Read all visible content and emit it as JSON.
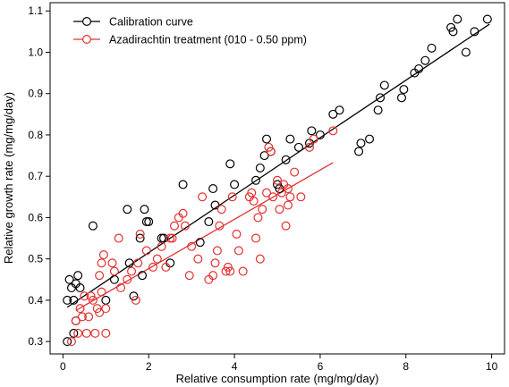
{
  "chart_data": {
    "type": "scatter",
    "title": "",
    "xlabel": "Relative consumption rate (mg/mg/day)",
    "ylabel": "Relative growth rate (mg/mg/day)",
    "xlim": [
      -0.3,
      10.3
    ],
    "ylim": [
      0.27,
      1.12
    ],
    "xticks": [
      0,
      2,
      4,
      6,
      8,
      10
    ],
    "yticks": [
      0.3,
      0.4,
      0.5,
      0.6,
      0.7,
      0.8,
      0.9,
      1.0,
      1.1
    ],
    "ytick_labels": [
      "0.3",
      "0.4",
      "0.5",
      "0.6",
      "0.7",
      "0.8",
      "0.9",
      "1.0",
      "1.1"
    ],
    "grid": false,
    "legend_position": "top-left",
    "series": [
      {
        "name": "Calibration curve",
        "color": "#000000",
        "marker": "open-circle",
        "points": [
          [
            0.1,
            0.3
          ],
          [
            0.1,
            0.4
          ],
          [
            0.15,
            0.45
          ],
          [
            0.2,
            0.43
          ],
          [
            0.25,
            0.4
          ],
          [
            0.3,
            0.44
          ],
          [
            0.35,
            0.46
          ],
          [
            0.4,
            0.43
          ],
          [
            0.25,
            0.32
          ],
          [
            0.3,
            0.35
          ],
          [
            0.7,
            0.58
          ],
          [
            1.0,
            0.4
          ],
          [
            1.2,
            0.45
          ],
          [
            1.5,
            0.62
          ],
          [
            1.55,
            0.49
          ],
          [
            1.65,
            0.41
          ],
          [
            1.8,
            0.55
          ],
          [
            1.85,
            0.46
          ],
          [
            1.9,
            0.62
          ],
          [
            1.95,
            0.59
          ],
          [
            2.0,
            0.59
          ],
          [
            2.3,
            0.55
          ],
          [
            2.35,
            0.55
          ],
          [
            2.5,
            0.49
          ],
          [
            2.8,
            0.68
          ],
          [
            3.2,
            0.54
          ],
          [
            3.4,
            0.59
          ],
          [
            3.5,
            0.67
          ],
          [
            3.55,
            0.63
          ],
          [
            3.9,
            0.73
          ],
          [
            4.0,
            0.68
          ],
          [
            4.5,
            0.69
          ],
          [
            4.6,
            0.72
          ],
          [
            4.7,
            0.75
          ],
          [
            4.75,
            0.79
          ],
          [
            4.85,
            0.76
          ],
          [
            5.0,
            0.68
          ],
          [
            5.05,
            0.67
          ],
          [
            5.2,
            0.74
          ],
          [
            5.3,
            0.79
          ],
          [
            5.5,
            0.77
          ],
          [
            5.75,
            0.78
          ],
          [
            5.8,
            0.81
          ],
          [
            6.0,
            0.8
          ],
          [
            6.3,
            0.85
          ],
          [
            6.45,
            0.86
          ],
          [
            6.9,
            0.76
          ],
          [
            6.95,
            0.78
          ],
          [
            7.15,
            0.79
          ],
          [
            7.35,
            0.86
          ],
          [
            7.4,
            0.89
          ],
          [
            7.5,
            0.92
          ],
          [
            7.9,
            0.89
          ],
          [
            7.95,
            0.91
          ],
          [
            8.2,
            0.95
          ],
          [
            8.3,
            0.96
          ],
          [
            8.45,
            0.98
          ],
          [
            8.6,
            1.01
          ],
          [
            9.05,
            1.06
          ],
          [
            9.1,
            1.05
          ],
          [
            9.2,
            1.08
          ],
          [
            9.4,
            1.0
          ],
          [
            9.6,
            1.05
          ],
          [
            9.9,
            1.08
          ]
        ],
        "fit": {
          "x": [
            0.1,
            9.95
          ],
          "y": [
            0.383,
            1.068
          ]
        }
      },
      {
        "name": "Azadirachtin treatment (010 - 0.50 ppm)",
        "color": "#e53030",
        "marker": "open-circle",
        "points": [
          [
            0.2,
            0.3
          ],
          [
            0.3,
            0.35
          ],
          [
            0.35,
            0.32
          ],
          [
            0.4,
            0.38
          ],
          [
            0.45,
            0.36
          ],
          [
            0.5,
            0.41
          ],
          [
            0.55,
            0.32
          ],
          [
            0.6,
            0.36
          ],
          [
            0.65,
            0.41
          ],
          [
            0.7,
            0.4
          ],
          [
            0.75,
            0.32
          ],
          [
            0.8,
            0.38
          ],
          [
            0.85,
            0.37
          ],
          [
            0.9,
            0.42
          ],
          [
            0.85,
            0.46
          ],
          [
            0.9,
            0.49
          ],
          [
            0.95,
            0.51
          ],
          [
            1.0,
            0.38
          ],
          [
            1.0,
            0.32
          ],
          [
            1.15,
            0.49
          ],
          [
            1.2,
            0.47
          ],
          [
            1.3,
            0.55
          ],
          [
            1.35,
            0.43
          ],
          [
            1.5,
            0.45
          ],
          [
            1.6,
            0.47
          ],
          [
            1.7,
            0.4
          ],
          [
            1.75,
            0.49
          ],
          [
            1.8,
            0.56
          ],
          [
            1.95,
            0.52
          ],
          [
            2.1,
            0.48
          ],
          [
            2.2,
            0.5
          ],
          [
            2.3,
            0.53
          ],
          [
            2.4,
            0.48
          ],
          [
            2.5,
            0.55
          ],
          [
            2.55,
            0.55
          ],
          [
            2.6,
            0.58
          ],
          [
            2.7,
            0.6
          ],
          [
            2.8,
            0.61
          ],
          [
            2.85,
            0.58
          ],
          [
            2.95,
            0.46
          ],
          [
            3.0,
            0.53
          ],
          [
            3.15,
            0.5
          ],
          [
            3.25,
            0.65
          ],
          [
            3.4,
            0.45
          ],
          [
            3.5,
            0.46
          ],
          [
            3.55,
            0.49
          ],
          [
            3.6,
            0.52
          ],
          [
            3.65,
            0.58
          ],
          [
            3.7,
            0.62
          ],
          [
            3.8,
            0.47
          ],
          [
            3.85,
            0.48
          ],
          [
            3.9,
            0.47
          ],
          [
            3.95,
            0.65
          ],
          [
            4.05,
            0.56
          ],
          [
            4.1,
            0.52
          ],
          [
            4.2,
            0.47
          ],
          [
            4.35,
            0.65
          ],
          [
            4.4,
            0.66
          ],
          [
            4.45,
            0.64
          ],
          [
            4.5,
            0.55
          ],
          [
            4.55,
            0.6
          ],
          [
            4.65,
            0.62
          ],
          [
            4.75,
            0.66
          ],
          [
            4.8,
            0.77
          ],
          [
            4.85,
            0.76
          ],
          [
            4.9,
            0.65
          ],
          [
            5.0,
            0.69
          ],
          [
            5.05,
            0.62
          ],
          [
            5.1,
            0.66
          ],
          [
            5.15,
            0.68
          ],
          [
            5.2,
            0.58
          ],
          [
            5.25,
            0.63
          ],
          [
            5.3,
            0.65
          ],
          [
            5.4,
            0.71
          ],
          [
            5.55,
            0.65
          ],
          [
            5.75,
            0.77
          ],
          [
            5.85,
            0.79
          ],
          [
            6.3,
            0.81
          ],
          [
            5.25,
            0.67
          ],
          [
            4.6,
            0.5
          ]
        ],
        "fit": {
          "x": [
            0.3,
            6.3
          ],
          "y": [
            0.375,
            0.733
          ]
        }
      }
    ]
  }
}
